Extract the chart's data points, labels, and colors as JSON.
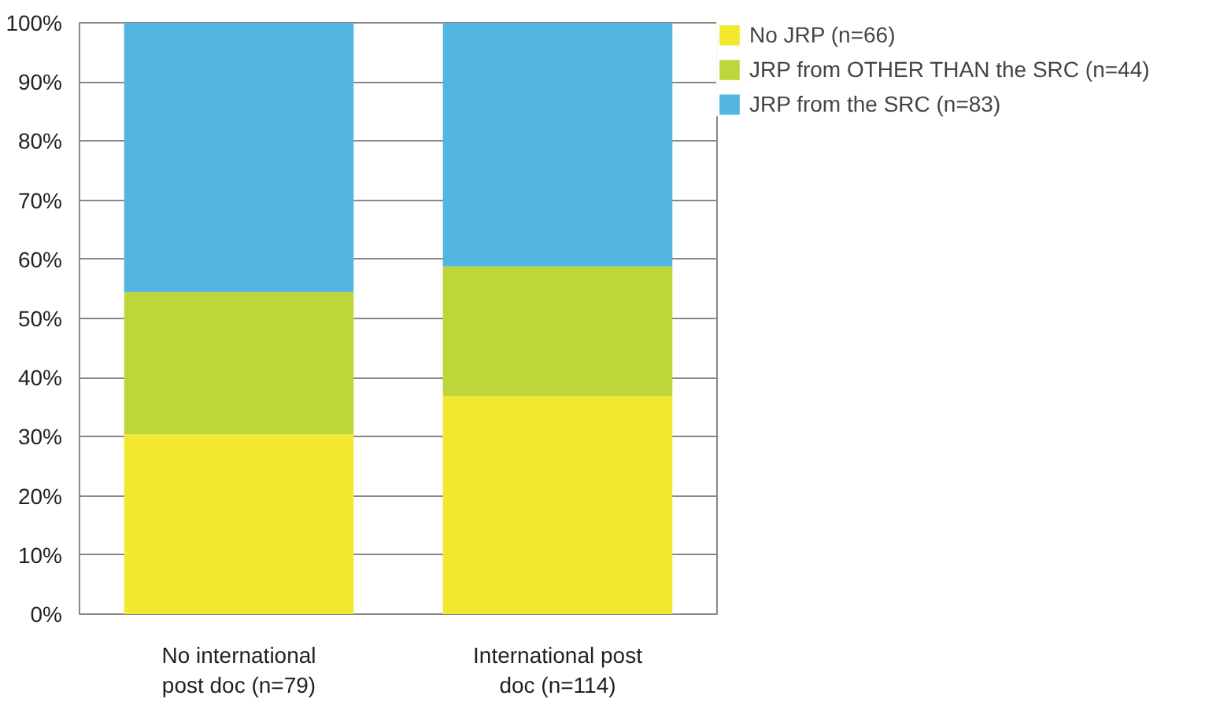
{
  "chart_data": {
    "type": "bar",
    "stacked": true,
    "categories": [
      "No international\npost doc (n=79)",
      "International post\ndoc (n=114)"
    ],
    "series": [
      {
        "name": "No JRP (n=66)",
        "color": "#f2e92e",
        "values": [
          30.4,
          36.8
        ]
      },
      {
        "name": "JRP from OTHER THAN the SRC (n=44)",
        "color": "#bdd63a",
        "values": [
          24.1,
          22.0
        ]
      },
      {
        "name": "JRP from the SRC (n=83)",
        "color": "#52b6e0",
        "values": [
          45.5,
          41.2
        ]
      }
    ],
    "ylim": [
      0,
      100
    ],
    "yticks": [
      {
        "value": 0,
        "label": "0%"
      },
      {
        "value": 10,
        "label": "10%"
      },
      {
        "value": 20,
        "label": "20%"
      },
      {
        "value": 30,
        "label": "30%"
      },
      {
        "value": 40,
        "label": "40%"
      },
      {
        "value": 50,
        "label": "50%"
      },
      {
        "value": 60,
        "label": "60%"
      },
      {
        "value": 70,
        "label": "70%"
      },
      {
        "value": 80,
        "label": "80%"
      },
      {
        "value": 90,
        "label": "90%"
      },
      {
        "value": 100,
        "label": "100%"
      }
    ],
    "grid": "y",
    "legend": "top right"
  }
}
